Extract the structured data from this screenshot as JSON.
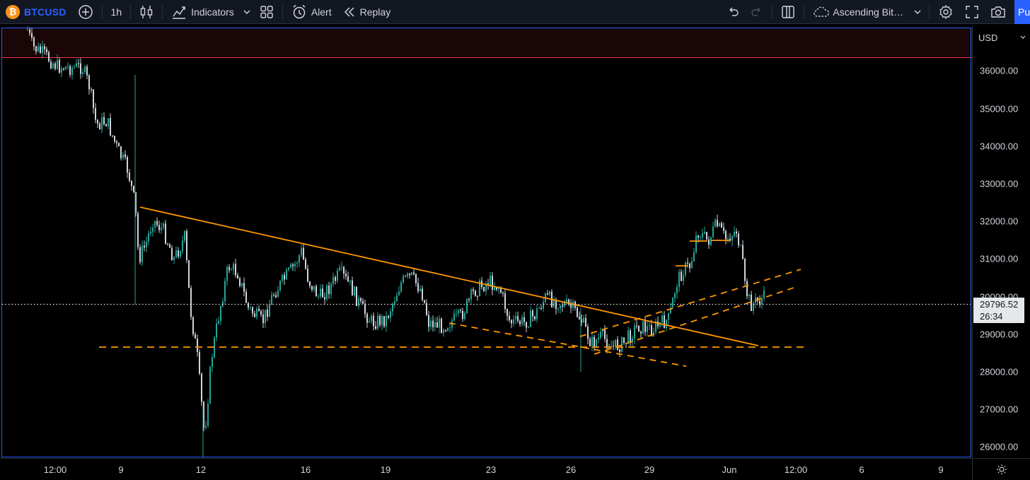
{
  "toolbar": {
    "symbol": "BTCUSD",
    "coin_glyph": "₿",
    "interval": "1h",
    "indicators_label": "Indicators",
    "alert_label": "Alert",
    "replay_label": "Replay",
    "layout_name": "Ascending Bit…",
    "publish_label": "Pu"
  },
  "price_scale": {
    "currency": "USD",
    "labels": [
      "36000.00",
      "35000.00",
      "34000.00",
      "33000.00",
      "32000.00",
      "31000.00",
      "30000.00",
      "29000.00",
      "28000.00",
      "27000.00",
      "26000.00"
    ]
  },
  "time_scale": {
    "labels": [
      "12:00",
      "9",
      "12",
      "16",
      "19",
      "23",
      "26",
      "29",
      "Jun",
      "12:00",
      "6",
      "9"
    ]
  },
  "last_price": {
    "price": "29796.52",
    "countdown": "26:34"
  },
  "colors": {
    "up": "#26a69a",
    "down": "#d1d4dc",
    "trendline": "#ff9800",
    "accent": "#2962ff",
    "alert_line": "#f23645"
  }
}
